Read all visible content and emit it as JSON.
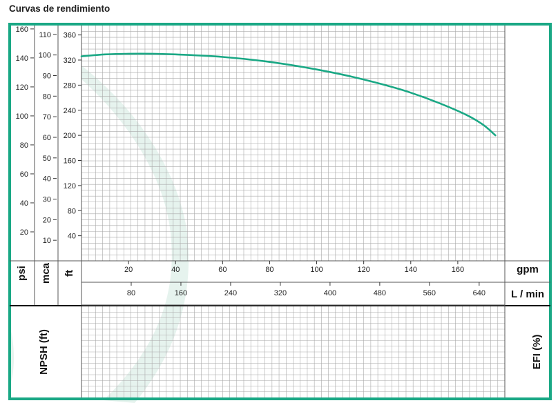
{
  "title": "Curvas de rendimiento",
  "colors": {
    "frame": "#1aa885",
    "curve": "#1aa885",
    "grid": "#a9a9a9",
    "watermark": "#e6f3ee",
    "text": "#222222"
  },
  "chart_data": {
    "type": "line",
    "title": "Curvas de rendimiento",
    "xlabel": "gpm",
    "x2label": "L / min",
    "xticks_gpm": [
      20,
      40,
      60,
      80,
      100,
      120,
      140,
      160
    ],
    "xticks_lpm": [
      80,
      160,
      240,
      320,
      400,
      480,
      560,
      640
    ],
    "xlim_gpm": [
      0,
      180
    ],
    "y_axes": [
      {
        "label": "psi",
        "ticks": [
          20,
          40,
          60,
          80,
          100,
          120,
          140,
          160
        ]
      },
      {
        "label": "mca",
        "ticks": [
          10,
          20,
          30,
          40,
          50,
          60,
          70,
          80,
          90,
          100,
          110
        ]
      },
      {
        "label": "ft",
        "ticks": [
          40,
          80,
          120,
          160,
          200,
          240,
          280,
          320,
          360
        ]
      }
    ],
    "ylim_ft": [
      0,
      375
    ],
    "series": [
      {
        "x_gpm": [
          0,
          10,
          20,
          30,
          40,
          60,
          80,
          100,
          120,
          140,
          160,
          170,
          176
        ],
        "y_ft": [
          326,
          329,
          330,
          330,
          329,
          325,
          317,
          305,
          289,
          268,
          239,
          219,
          200
        ]
      }
    ],
    "lower_panel": {
      "left_label": "NPSH (ft)",
      "right_label": "EFI (%)"
    },
    "grid": true
  }
}
